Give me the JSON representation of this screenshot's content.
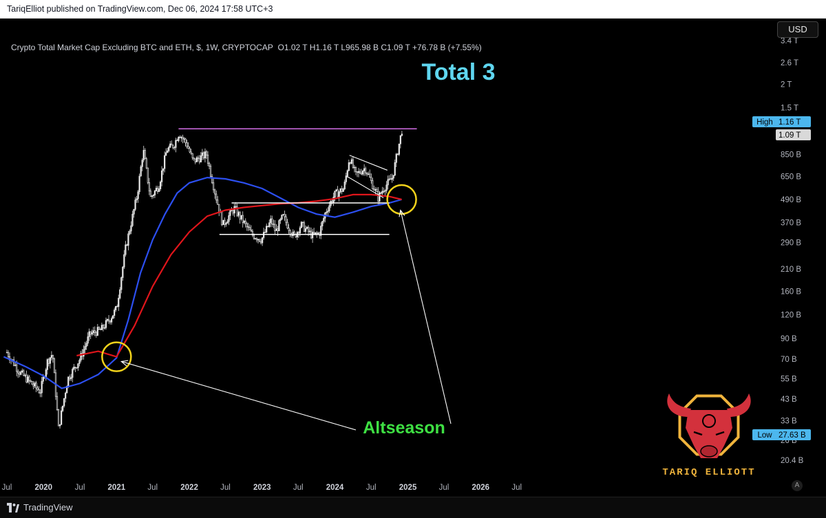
{
  "publish_bar": {
    "text": "TariqElliot published on TradingView.com, Dec 06, 2024 17:58 UTC+3"
  },
  "symbol": {
    "title": "Crypto Total Market Cap Excluding BTC and ETH, $, 1W, CRYPTOCAP",
    "ohlc": "O1.02 T  H1.16 T  L965.98 B  C1.09 T  +76.78 B (+7.55%)"
  },
  "currency_button": "USD",
  "auto_button": "A",
  "footer": {
    "brand": "TradingView"
  },
  "colors": {
    "background": "#000000",
    "candles": "#e6e6e6",
    "ma_fast": "#2c4ff0",
    "ma_slow": "#e0151b",
    "resistance": "#d36ee6",
    "circle": "#f2d21b",
    "title": "#5fd6f0",
    "annotation": "#3ee043",
    "badge": "#4cb7ee",
    "logo_gold": "#f0b43c",
    "logo_red": "#d3313c"
  },
  "logo": {
    "text": "TARIQ ELLIOTT",
    "icon": "bull-head-icon"
  },
  "chart_data": {
    "type": "candlestick",
    "title": "Total 3",
    "y_scale": "log",
    "y_ticks": [
      "3.4 T",
      "2.6 T",
      "2 T",
      "1.5 T",
      "850 B",
      "650 B",
      "490 B",
      "370 B",
      "290 B",
      "210 B",
      "160 B",
      "120 B",
      "90 B",
      "70 B",
      "55 B",
      "43 B",
      "33 B",
      "26 B",
      "20.4 B"
    ],
    "y_tick_values": [
      3400,
      2600,
      2000,
      1500,
      850,
      650,
      490,
      370,
      290,
      210,
      160,
      120,
      90,
      70,
      55,
      43,
      33,
      26,
      20.4
    ],
    "y_unit": "B",
    "x_ticks": [
      "Jul",
      "2020",
      "Jul",
      "2021",
      "Jul",
      "2022",
      "Jul",
      "2023",
      "Jul",
      "2024",
      "Jul",
      "2025",
      "Jul",
      "2026",
      "Jul"
    ],
    "x_tick_dates": [
      "2019-07-01",
      "2020-01-01",
      "2020-07-01",
      "2021-01-01",
      "2021-07-01",
      "2022-01-01",
      "2022-07-01",
      "2023-01-01",
      "2023-07-01",
      "2024-01-01",
      "2024-07-01",
      "2025-01-01",
      "2025-07-01",
      "2026-01-01",
      "2026-07-01"
    ],
    "price_badges": [
      {
        "label": "High",
        "value": "1.16 T"
      },
      {
        "value": "1.09 T"
      },
      {
        "label": "Low",
        "value": "27.63 B"
      }
    ],
    "annotations": [
      {
        "text": "Altseason"
      }
    ],
    "price_path": [
      [
        "2019-07-01",
        76
      ],
      [
        "2019-09-01",
        60
      ],
      [
        "2019-12-15",
        47
      ],
      [
        "2020-01-20",
        68
      ],
      [
        "2020-02-15",
        75
      ],
      [
        "2020-03-16",
        30
      ],
      [
        "2020-05-01",
        55
      ],
      [
        "2020-07-01",
        70
      ],
      [
        "2020-08-20",
        95
      ],
      [
        "2020-10-15",
        100
      ],
      [
        "2020-12-01",
        115
      ],
      [
        "2021-01-01",
        130
      ],
      [
        "2021-02-15",
        270
      ],
      [
        "2021-04-15",
        520
      ],
      [
        "2021-05-15",
        900
      ],
      [
        "2021-06-20",
        500
      ],
      [
        "2021-08-01",
        580
      ],
      [
        "2021-09-10",
        900
      ],
      [
        "2021-10-15",
        950
      ],
      [
        "2021-11-10",
        1100
      ],
      [
        "2021-12-20",
        960
      ],
      [
        "2022-01-20",
        780
      ],
      [
        "2022-03-28",
        850
      ],
      [
        "2022-05-12",
        520
      ],
      [
        "2022-06-18",
        360
      ],
      [
        "2022-08-14",
        440
      ],
      [
        "2022-10-01",
        370
      ],
      [
        "2022-11-10",
        320
      ],
      [
        "2022-12-28",
        300
      ],
      [
        "2023-02-15",
        380
      ],
      [
        "2023-03-10",
        330
      ],
      [
        "2023-04-15",
        400
      ],
      [
        "2023-06-10",
        310
      ],
      [
        "2023-07-15",
        360
      ],
      [
        "2023-09-10",
        315
      ],
      [
        "2023-10-15",
        325
      ],
      [
        "2023-11-15",
        420
      ],
      [
        "2023-12-31",
        520
      ],
      [
        "2024-02-15",
        560
      ],
      [
        "2024-03-14",
        820
      ],
      [
        "2024-04-15",
        660
      ],
      [
        "2024-06-01",
        720
      ],
      [
        "2024-08-05",
        500
      ],
      [
        "2024-09-01",
        560
      ],
      [
        "2024-10-15",
        640
      ],
      [
        "2024-11-15",
        930
      ],
      [
        "2024-12-02",
        1140
      ]
    ],
    "series": [
      {
        "points": [
          [
            "2019-06-15",
            72
          ],
          [
            "2019-10-01",
            64
          ],
          [
            "2020-01-01",
            57
          ],
          [
            "2020-04-01",
            49
          ],
          [
            "2020-07-01",
            52
          ],
          [
            "2020-10-01",
            58
          ],
          [
            "2021-01-01",
            71
          ],
          [
            "2021-03-01",
            113
          ],
          [
            "2021-05-01",
            200
          ],
          [
            "2021-07-01",
            300
          ],
          [
            "2021-09-01",
            410
          ],
          [
            "2021-11-01",
            530
          ],
          [
            "2022-01-01",
            600
          ],
          [
            "2022-04-01",
            640
          ],
          [
            "2022-07-01",
            630
          ],
          [
            "2022-10-01",
            600
          ],
          [
            "2023-01-01",
            560
          ],
          [
            "2023-04-01",
            500
          ],
          [
            "2023-07-01",
            445
          ],
          [
            "2023-10-01",
            410
          ],
          [
            "2024-01-01",
            395
          ],
          [
            "2024-04-01",
            420
          ],
          [
            "2024-07-01",
            450
          ],
          [
            "2024-10-01",
            470
          ],
          [
            "2024-12-01",
            490
          ]
        ]
      },
      {
        "points": [
          [
            "2020-06-15",
            73
          ],
          [
            "2020-10-01",
            77
          ],
          [
            "2021-01-01",
            72
          ],
          [
            "2021-04-01",
            105
          ],
          [
            "2021-07-01",
            170
          ],
          [
            "2021-10-01",
            250
          ],
          [
            "2022-01-01",
            330
          ],
          [
            "2022-04-01",
            400
          ],
          [
            "2022-07-01",
            430
          ],
          [
            "2022-10-01",
            445
          ],
          [
            "2023-01-01",
            455
          ],
          [
            "2023-04-01",
            465
          ],
          [
            "2023-07-01",
            470
          ],
          [
            "2023-10-01",
            480
          ],
          [
            "2024-01-01",
            495
          ],
          [
            "2024-04-01",
            520
          ],
          [
            "2024-07-01",
            520
          ],
          [
            "2024-10-01",
            508
          ],
          [
            "2024-12-01",
            490
          ]
        ]
      }
    ],
    "resistance_line": {
      "value": 1160,
      "from": "2021-11-08",
      "to": "2025-02-15"
    },
    "range_lines": [
      {
        "value": 470,
        "from": "2022-08-01",
        "to": "2024-09-30"
      },
      {
        "value": 320,
        "from": "2022-06-01",
        "to": "2024-09-30"
      }
    ],
    "flag_channel": [
      {
        "from": [
          "2024-03-14",
          840
        ],
        "to": [
          "2024-09-20",
          700
        ]
      },
      {
        "from": [
          "2024-03-01",
          650
        ],
        "to": [
          "2024-09-01",
          500
        ]
      }
    ],
    "circles": [
      {
        "date": "2021-01-01",
        "value": 72
      },
      {
        "date": "2024-12-01",
        "value": 490
      }
    ],
    "arrows": [
      {
        "from_annotation": "Altseason",
        "to": [
          "2021-01-25",
          68
        ]
      },
      {
        "from_annotation": "Altseason",
        "to": [
          "2024-11-25",
          430
        ]
      }
    ]
  }
}
